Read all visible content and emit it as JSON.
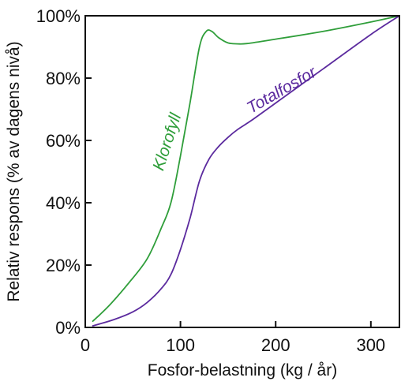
{
  "chart_data": {
    "type": "line",
    "xlabel": "Fosfor-belastning (kg / år)",
    "ylabel": "Relativ respons (% av dagens nivå)",
    "xlim": [
      0,
      330
    ],
    "ylim": [
      0,
      100
    ],
    "x_ticks": [
      "0",
      "100",
      "200",
      "300"
    ],
    "y_ticks": [
      "0%",
      "20%",
      "40%",
      "60%",
      "80%",
      "100%"
    ],
    "x_tick_values": [
      0,
      100,
      200,
      300
    ],
    "y_tick_values": [
      0,
      20,
      40,
      60,
      80,
      100
    ],
    "grid": false,
    "legend": "none (series labeled inline)",
    "series": [
      {
        "name": "Klorofyll",
        "color": "#2f9e3a",
        "x": [
          8,
          25,
          45,
          65,
          80,
          90,
          100,
          110,
          120,
          127,
          133,
          140,
          150,
          160,
          170,
          200,
          250,
          300,
          330
        ],
        "y": [
          2,
          7,
          14,
          22,
          32,
          40,
          55,
          72,
          90,
          95,
          95,
          93,
          91.3,
          91,
          91.1,
          92.5,
          95,
          98,
          100
        ]
      },
      {
        "name": "Totalfosfor",
        "color": "#5b2a9e",
        "x": [
          8,
          30,
          50,
          65,
          80,
          90,
          100,
          110,
          120,
          130,
          140,
          150,
          160,
          175,
          200,
          250,
          300,
          330
        ],
        "y": [
          0.5,
          2.5,
          5,
          8,
          12.5,
          17,
          25,
          35,
          47,
          54,
          58,
          61,
          63.5,
          66.5,
          72,
          83,
          94,
          100
        ]
      }
    ]
  }
}
